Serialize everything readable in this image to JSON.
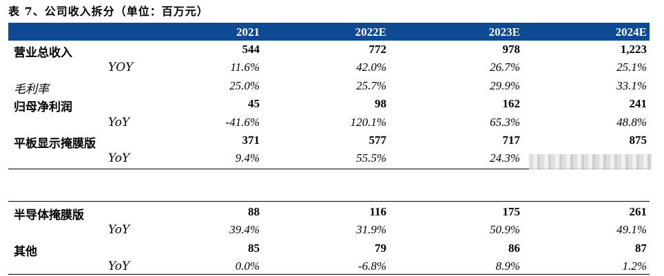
{
  "title": "表 7、公司收入拆分（单位：百万元）",
  "header": [
    "2021",
    "2022E",
    "2023E",
    "2024E"
  ],
  "rows_top": [
    {
      "label": "营业总收入",
      "values": [
        "544",
        "772",
        "978",
        "1,223"
      ],
      "style": "bold",
      "indent": false
    },
    {
      "label": "YOY",
      "values": [
        "11.6%",
        "42.0%",
        "26.7%",
        "25.1%"
      ],
      "style": "ital",
      "indent": true
    },
    {
      "label": "毛利率",
      "values": [
        "25.0%",
        "25.7%",
        "29.9%",
        "33.1%"
      ],
      "style": "ital",
      "indent": false
    },
    {
      "label": "归母净利润",
      "values": [
        "45",
        "98",
        "162",
        "241"
      ],
      "style": "bold",
      "indent": false
    },
    {
      "label": "YoY",
      "values": [
        "-41.6%",
        "120.1%",
        "65.3%",
        "48.8%"
      ],
      "style": "ital",
      "indent": true
    },
    {
      "label": "平板显示掩膜版",
      "values": [
        "371",
        "577",
        "717",
        "875"
      ],
      "style": "bold",
      "indent": false
    },
    {
      "label": "YoY",
      "values": [
        "9.4%",
        "55.5%",
        "24.3%",
        ""
      ],
      "style": "ital",
      "indent": true
    }
  ],
  "rows_bottom": [
    {
      "label": "半导体掩膜版",
      "values": [
        "88",
        "116",
        "175",
        "261"
      ],
      "style": "bold",
      "indent": false
    },
    {
      "label": "YoY",
      "values": [
        "39.4%",
        "31.9%",
        "50.9%",
        "49.1%"
      ],
      "style": "ital",
      "indent": true
    },
    {
      "label": "其他",
      "values": [
        "85",
        "79",
        "86",
        "87"
      ],
      "style": "bold",
      "indent": false
    },
    {
      "label": "YoY",
      "values": [
        "0.0%",
        "-6.8%",
        "8.9%",
        "1.2%"
      ],
      "style": "ital",
      "indent": true
    }
  ]
}
